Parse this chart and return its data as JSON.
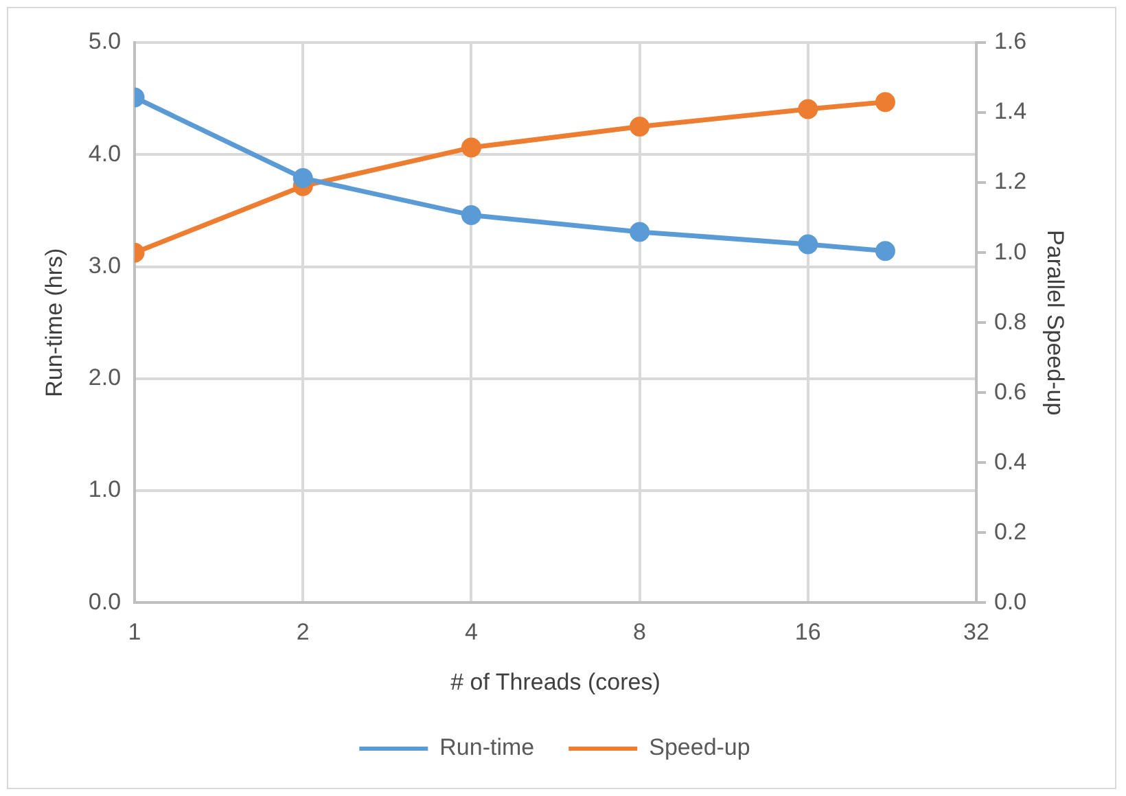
{
  "chart_data": {
    "type": "line",
    "xlabel": "# of Threads (cores)",
    "ylabel": "Run-time (hrs)",
    "y2label": "Parallel Speed-up",
    "x": [
      1,
      2,
      4,
      8,
      16,
      22
    ],
    "series": [
      {
        "name": "Run-time",
        "color": "#5b9bd5",
        "values": [
          4.51,
          3.79,
          3.46,
          3.31,
          3.2,
          3.14
        ]
      },
      {
        "name": "Speed-up",
        "color": "#ed7d31",
        "axis": "y2",
        "values": [
          1.0,
          1.19,
          1.3,
          1.36,
          1.41,
          1.43
        ]
      }
    ],
    "log": "x",
    "xlim": [
      1,
      32
    ],
    "xticks": [
      1,
      2,
      4,
      8,
      16,
      32
    ],
    "ylim": [
      0,
      5
    ],
    "yticks": [
      {
        "value": 0,
        "label": "0.0"
      },
      {
        "value": 1,
        "label": "1.0"
      },
      {
        "value": 2,
        "label": "2.0"
      },
      {
        "value": 3,
        "label": "3.0"
      },
      {
        "value": 4,
        "label": "4.0"
      },
      {
        "value": 5,
        "label": "5.0"
      }
    ],
    "y2lim": [
      0,
      1.6
    ],
    "y2ticks": [
      {
        "value": 0,
        "label": "0.0"
      },
      {
        "value": 0.2,
        "label": "0.2"
      },
      {
        "value": 0.4,
        "label": "0.4"
      },
      {
        "value": 0.6,
        "label": "0.6"
      },
      {
        "value": 0.8,
        "label": "0.8"
      },
      {
        "value": 1,
        "label": "1.0"
      },
      {
        "value": 1.2,
        "label": "1.2"
      },
      {
        "value": 1.4,
        "label": "1.4"
      },
      {
        "value": 1.6,
        "label": "1.6"
      }
    ],
    "grid": true,
    "legend": "bottom",
    "marker": "circle",
    "line_style": "solid"
  }
}
